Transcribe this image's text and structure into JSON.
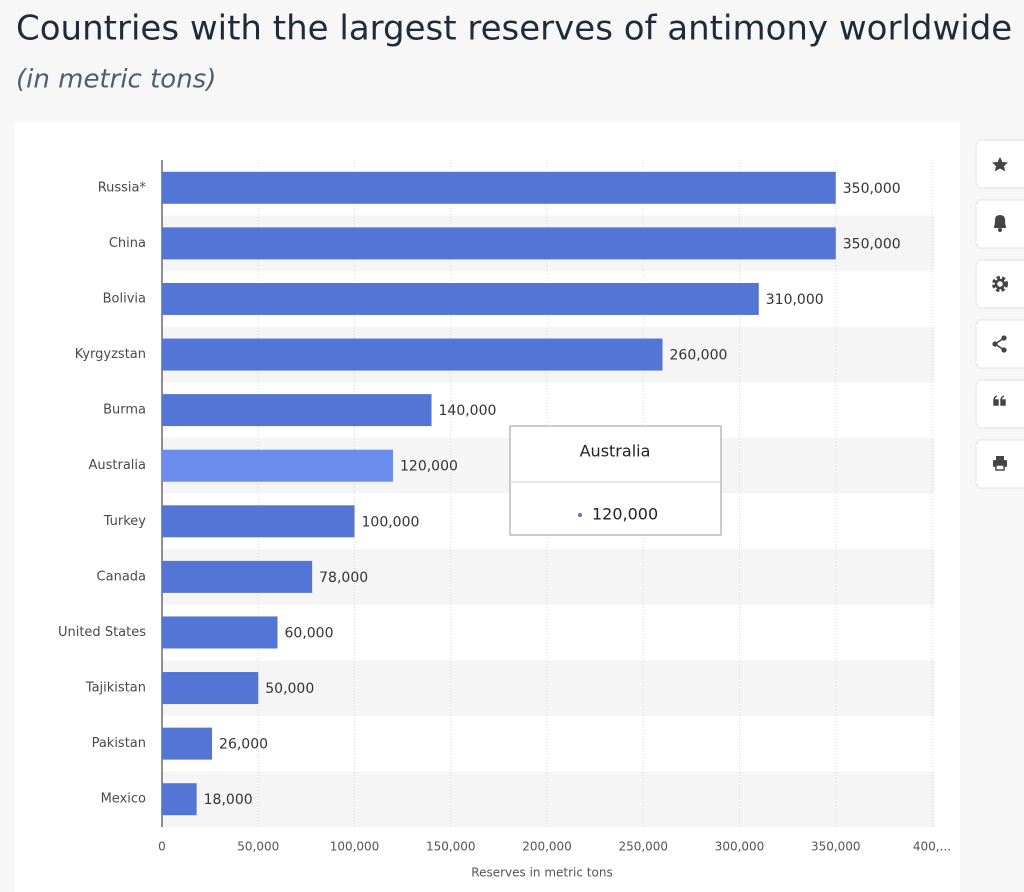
{
  "chart_data": {
    "type": "barh",
    "title": "Countries with the largest reserves of antimony worldwide a",
    "subtitle": "(in metric tons)",
    "x_label": "Reserves in metric tons",
    "categories": [
      "Russia*",
      "China",
      "Bolivia",
      "Kyrgyzstan",
      "Burma",
      "Australia",
      "Turkey",
      "Canada",
      "United States",
      "Tajikistan",
      "Pakistan",
      "Mexico"
    ],
    "values": [
      350000,
      350000,
      310000,
      260000,
      140000,
      120000,
      100000,
      78000,
      60000,
      50000,
      26000,
      18000
    ],
    "value_labels": [
      "350,000",
      "350,000",
      "310,000",
      "260,000",
      "140,000",
      "120,000",
      "100,000",
      "78,000",
      "60,000",
      "50,000",
      "26,000",
      "18,000"
    ],
    "color": "#5275d6",
    "highlight": 5,
    "highlight_color": "#6b8ded",
    "xlim": [
      0,
      400000
    ],
    "xticks": [
      0,
      {
        "value": 50000,
        "label": "50,000"
      },
      {
        "value": 100000,
        "label": "100,000"
      },
      {
        "value": 150000,
        "label": "150,000"
      },
      {
        "value": 200000,
        "label": "200,000"
      },
      {
        "value": 250000,
        "label": "250,000"
      },
      {
        "value": 300000,
        "label": "300,000"
      },
      {
        "value": 350000,
        "label": "350,000"
      },
      {
        "value": 400000,
        "label": "400,..."
      }
    ],
    "grid": true
  }
}
